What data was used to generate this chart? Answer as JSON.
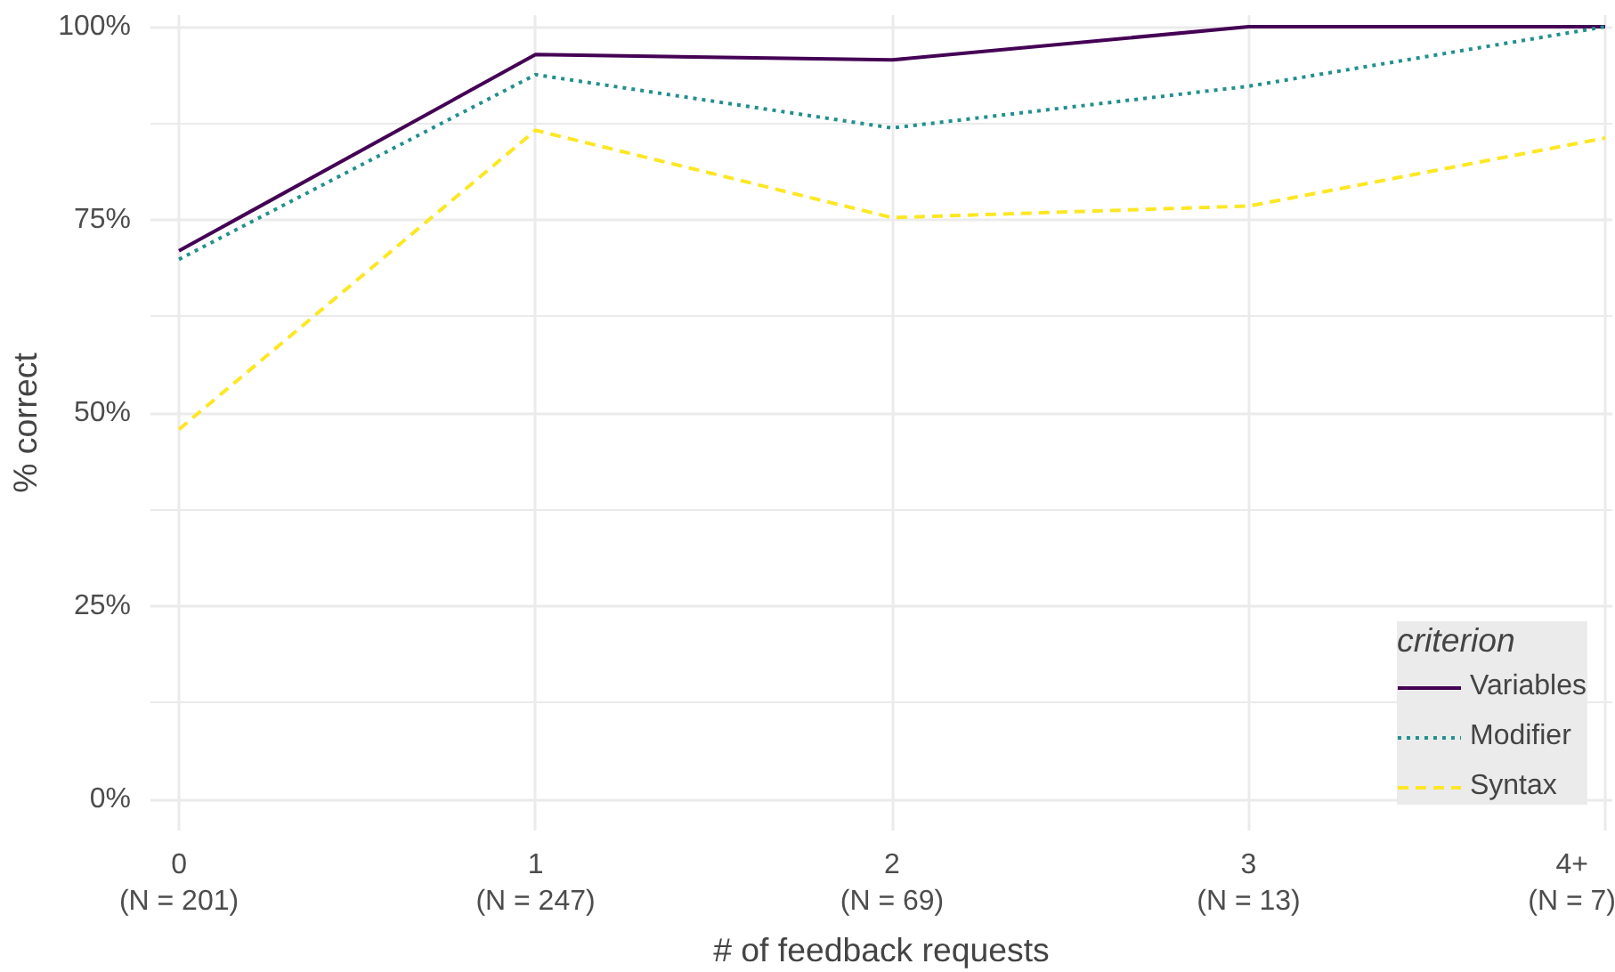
{
  "chart_data": {
    "type": "line",
    "xlabel": "# of feedback requests",
    "ylabel": "% correct",
    "legend_title": "criterion",
    "categories": [
      "0\n(N = 201)",
      "1\n(N = 247)",
      "2\n(N = 69)",
      "3\n(N = 13)",
      "4+\n(N = 7)"
    ],
    "series": [
      {
        "name": "Variables",
        "color": "#440154",
        "line_style": "solid",
        "values": [
          71.0,
          96.4,
          95.7,
          100,
          100
        ]
      },
      {
        "name": "Modifier",
        "color": "#21908c",
        "line_style": "dotted",
        "values": [
          69.9,
          93.8,
          86.9,
          92.3,
          100
        ]
      },
      {
        "name": "Syntax",
        "color": "#fde725",
        "line_style": "dashed",
        "values": [
          47.9,
          86.6,
          75.3,
          76.8,
          85.6
        ]
      }
    ],
    "ylim": [
      -4,
      101.5
    ],
    "yticks": [
      {
        "value": 0,
        "label": "0%"
      },
      {
        "value": 25,
        "label": "25%"
      },
      {
        "value": 50,
        "label": "50%"
      },
      {
        "value": 75,
        "label": "75%"
      },
      {
        "value": 100,
        "label": "100%"
      }
    ],
    "grid": true,
    "legend": "bottom right"
  }
}
